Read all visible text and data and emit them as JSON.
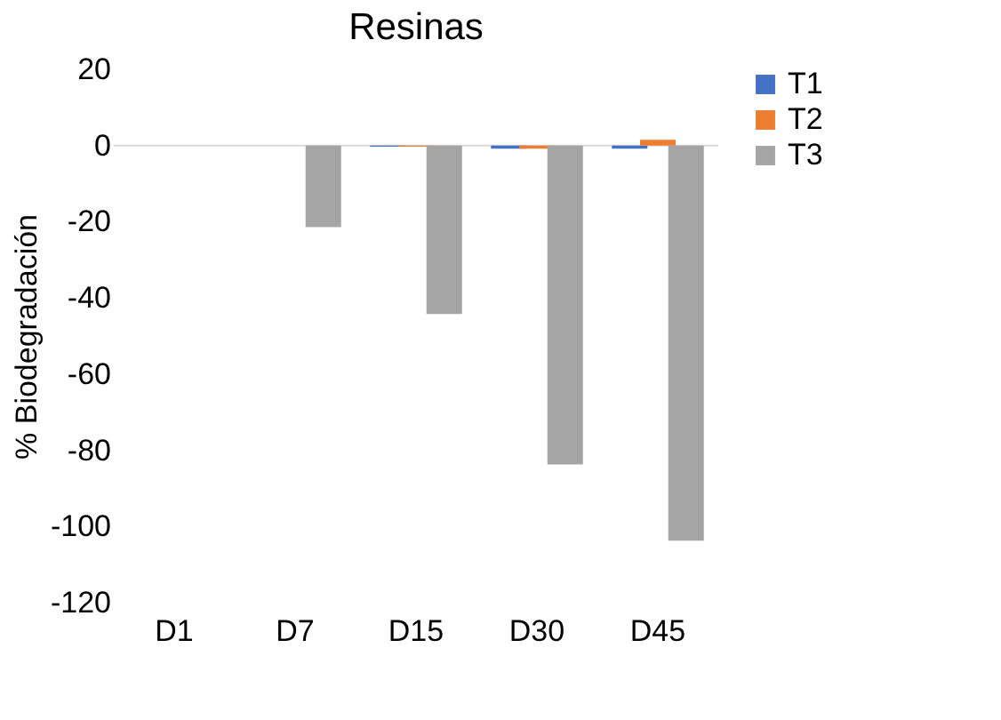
{
  "chart_data": {
    "type": "bar",
    "title": "Resinas",
    "ylabel": "% Biodegradación",
    "categories": [
      "D1",
      "D7",
      "D15",
      "D30",
      "D45"
    ],
    "series": [
      {
        "name": "T1",
        "color": "#4472c4",
        "values": [
          0,
          0,
          -0.3,
          -0.8,
          -0.8
        ]
      },
      {
        "name": "T2",
        "color": "#ed7d31",
        "values": [
          0,
          0,
          -0.3,
          -0.8,
          1.5
        ]
      },
      {
        "name": "T3",
        "color": "#a5a5a5",
        "values": [
          0,
          -21.4,
          -44.2,
          -83.7,
          -103.7
        ]
      }
    ],
    "ref_lines": [
      {
        "axis": "y",
        "value": 0,
        "color": "#d9d9d9"
      }
    ],
    "ylim": [
      -120,
      20
    ],
    "yticks": [
      -120,
      -100,
      -80,
      -60,
      -40,
      -20,
      0,
      20
    ],
    "grid": false,
    "legend": "right"
  }
}
